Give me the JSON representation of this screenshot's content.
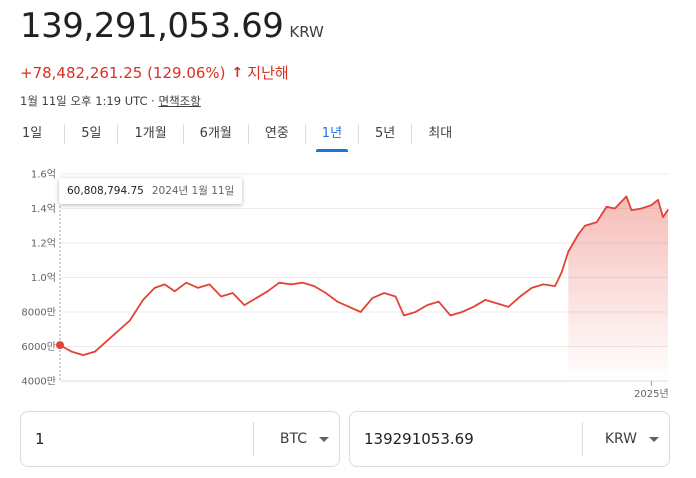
{
  "header": {
    "price": "139,291,053.69",
    "currency": "KRW",
    "change": "+78,482,261.25 (129.06%)",
    "change_arrow_icon": "arrow-up-icon",
    "period": "지난해",
    "timestamp": "1월 11일 오후 1:19 UTC",
    "meta_separator": "·",
    "disclaimer": "면책조항",
    "accent_negative": "#d93025"
  },
  "tabs": [
    {
      "label": "1일",
      "active": false
    },
    {
      "label": "5일",
      "active": false
    },
    {
      "label": "1개월",
      "active": false
    },
    {
      "label": "6개월",
      "active": false
    },
    {
      "label": "연중",
      "active": false
    },
    {
      "label": "1년",
      "active": true
    },
    {
      "label": "5년",
      "active": false
    },
    {
      "label": "최대",
      "active": false
    }
  ],
  "chart_data": {
    "type": "area",
    "title": "",
    "xlabel": "",
    "ylabel": "",
    "y_ticks": [
      {
        "value": 160000000,
        "label": "1.6억"
      },
      {
        "value": 140000000,
        "label": "1.4억"
      },
      {
        "value": 120000000,
        "label": "1.2억"
      },
      {
        "value": 100000000,
        "label": "1.0억"
      },
      {
        "value": 80000000,
        "label": "8000만"
      },
      {
        "value": 60000000,
        "label": "6000만"
      },
      {
        "value": 40000000,
        "label": "4000만"
      }
    ],
    "x_ticks": [
      {
        "value": "2025-01-01",
        "label": "2025년"
      }
    ],
    "ylim": [
      40000000,
      160000000
    ],
    "xlim": [
      "2024-01-11",
      "2025-01-11"
    ],
    "grid": true,
    "line_color": "#e34234",
    "series": [
      {
        "x": [
          "2024-01-11",
          "2024-01-18",
          "2024-01-25",
          "2024-02-01",
          "2024-02-08",
          "2024-02-15",
          "2024-02-22",
          "2024-03-01",
          "2024-03-08",
          "2024-03-14",
          "2024-03-20",
          "2024-03-27",
          "2024-04-03",
          "2024-04-10",
          "2024-04-17",
          "2024-04-24",
          "2024-05-01",
          "2024-05-08",
          "2024-05-15",
          "2024-05-22",
          "2024-05-29",
          "2024-06-05",
          "2024-06-12",
          "2024-06-19",
          "2024-06-26",
          "2024-07-03",
          "2024-07-10",
          "2024-07-17",
          "2024-07-24",
          "2024-07-31",
          "2024-08-05",
          "2024-08-12",
          "2024-08-19",
          "2024-08-26",
          "2024-09-02",
          "2024-09-09",
          "2024-09-16",
          "2024-09-23",
          "2024-09-30",
          "2024-10-07",
          "2024-10-14",
          "2024-10-21",
          "2024-10-28",
          "2024-11-04",
          "2024-11-08",
          "2024-11-12",
          "2024-11-18",
          "2024-11-22",
          "2024-11-29",
          "2024-12-05",
          "2024-12-10",
          "2024-12-17",
          "2024-12-20",
          "2024-12-26",
          "2025-01-01",
          "2025-01-05",
          "2025-01-08",
          "2025-01-11"
        ],
        "values": [
          60808794.75,
          57000000,
          55000000,
          57000000,
          63000000,
          69000000,
          75000000,
          87000000,
          94000000,
          96000000,
          92000000,
          97000000,
          94000000,
          96000000,
          89000000,
          91000000,
          84000000,
          88000000,
          92000000,
          97000000,
          96000000,
          97000000,
          95000000,
          91000000,
          86000000,
          83000000,
          80000000,
          88000000,
          91000000,
          89000000,
          78000000,
          80000000,
          84000000,
          86000000,
          78000000,
          80000000,
          83000000,
          87000000,
          85000000,
          83000000,
          89000000,
          94000000,
          96000000,
          95000000,
          103000000,
          115000000,
          125000000,
          130000000,
          132000000,
          141000000,
          140000000,
          147000000,
          139000000,
          140000000,
          142000000,
          145000000,
          135000000,
          139291053.69
        ]
      }
    ],
    "tooltip": {
      "value": "60,808,794.75",
      "date": "2024년 1월 11일"
    }
  },
  "converter": {
    "left_value": "1",
    "left_unit": "BTC",
    "right_value": "139291053.69",
    "right_unit": "KRW"
  }
}
